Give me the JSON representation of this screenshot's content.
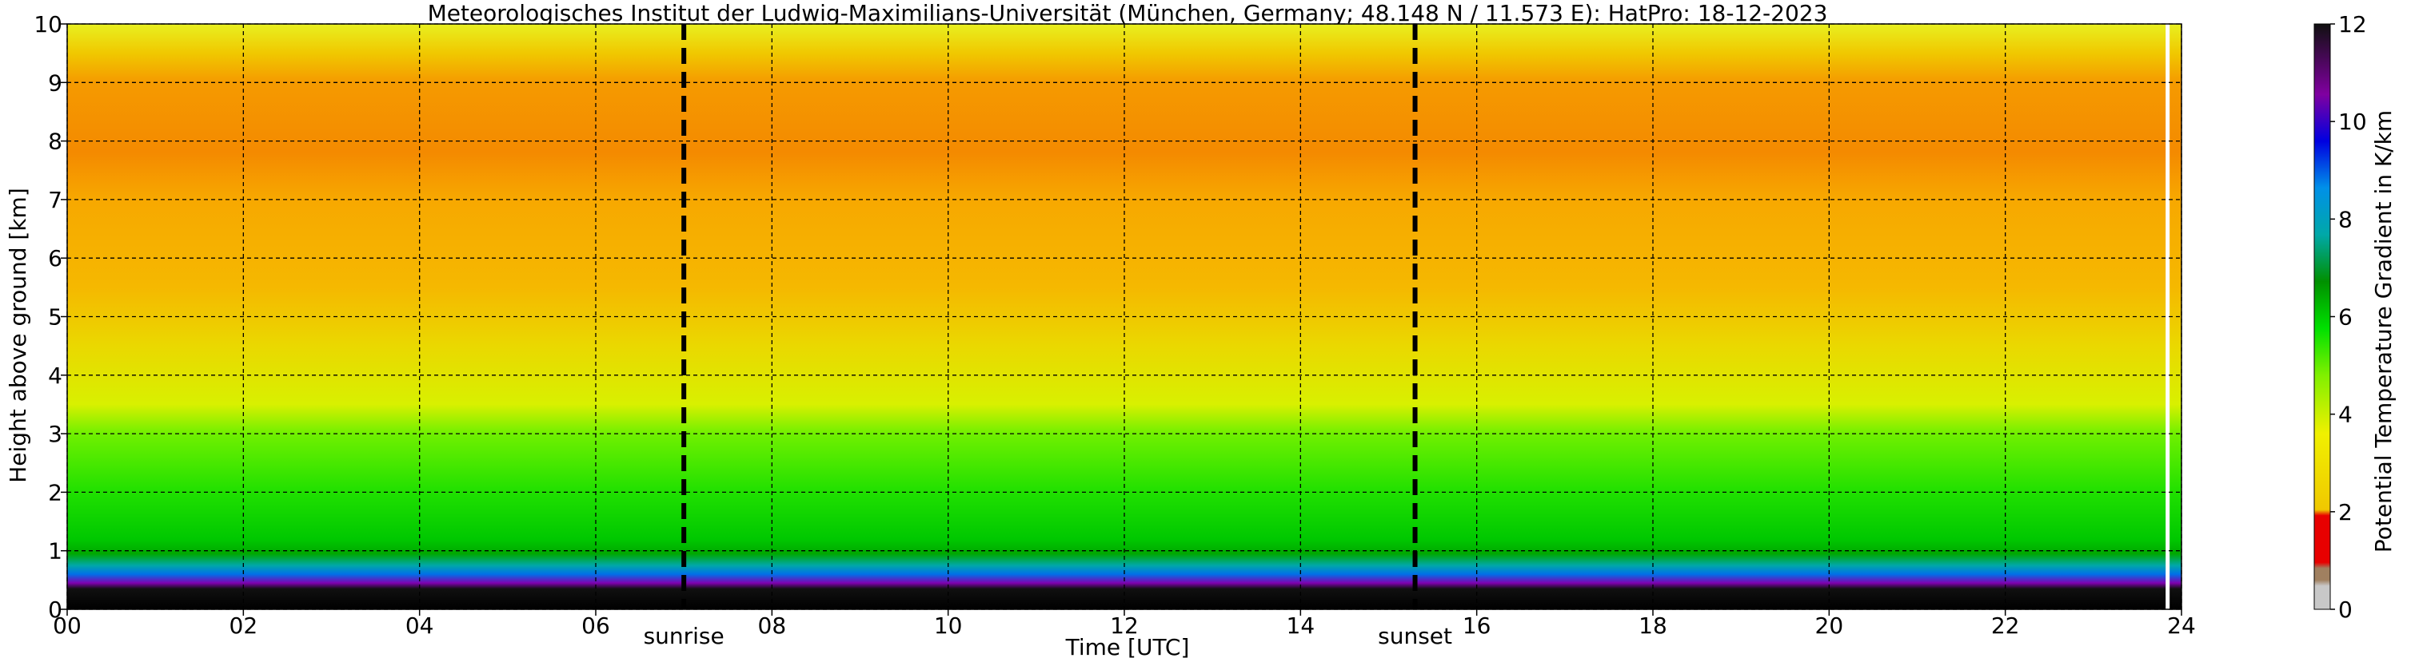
{
  "chart_data": {
    "type": "heatmap",
    "title": "Meteorologisches Institut der Ludwig-Maximilians-Universität (München, Germany; 48.148 N / 11.573 E):    HatPro: 18-12-2023",
    "xlabel": "Time [UTC]",
    "ylabel": "Height above ground [km]",
    "xlim": [
      0,
      24
    ],
    "ylim": [
      0,
      10
    ],
    "x_ticks": [
      "00",
      "02",
      "04",
      "06",
      "08",
      "10",
      "12",
      "14",
      "16",
      "18",
      "20",
      "22",
      "24"
    ],
    "y_ticks": [
      "0",
      "1",
      "2",
      "3",
      "4",
      "5",
      "6",
      "7",
      "8",
      "9",
      "10"
    ],
    "grid": true,
    "colorbar": {
      "label": "Potential Temperature Gradient in K/km",
      "range": [
        0,
        12
      ],
      "ticks": [
        "0",
        "2",
        "4",
        "6",
        "8",
        "10",
        "12"
      ],
      "colors": [
        "#c8c8c8",
        "#a08060",
        "#e80000",
        "#f0e000",
        "#c8f000",
        "#00e000",
        "#009000",
        "#00a8a8",
        "#0090e8",
        "#0000e0",
        "#8000a0",
        "#101010"
      ]
    },
    "annotations": [
      {
        "text": "sunrise",
        "x": 7.0
      },
      {
        "text": "sunset",
        "x": 15.3
      }
    ],
    "layers": [
      {
        "height_km": [
          0,
          0.55
        ],
        "gradient": 12
      },
      {
        "height_km": [
          0.55,
          0.65
        ],
        "gradient": 10
      },
      {
        "height_km": [
          0.65,
          0.85
        ],
        "gradient": 8
      },
      {
        "height_km": [
          0.85,
          1.0
        ],
        "gradient": 6.5
      },
      {
        "height_km": [
          1.0,
          3.0
        ],
        "gradient": 5.5
      },
      {
        "height_km": [
          3.0,
          4.5
        ],
        "gradient": 4
      },
      {
        "height_km": [
          4.5,
          7.0
        ],
        "gradient": 3
      },
      {
        "height_km": [
          7.0,
          9.5
        ],
        "gradient": 2.6
      },
      {
        "height_km": [
          9.5,
          10.0
        ],
        "gradient": 3.5
      }
    ]
  }
}
